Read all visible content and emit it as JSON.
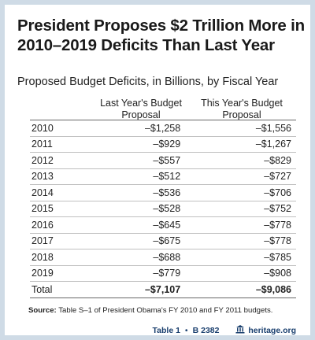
{
  "title": "President Proposes $2 Trillion More in 2010–2019 Deficits Than Last Year",
  "chart_data": {
    "type": "table",
    "title": "President Proposes $2 Trillion More in 2010–2019 Deficits Than Last Year",
    "subtitle": "Proposed Budget Deficits, in Billions, by Fiscal Year",
    "columns": [
      "Last Year's Budget Proposal",
      "This Year's Budget Proposal"
    ],
    "rows": [
      {
        "year": "2010",
        "last": "–$1,258",
        "this": "–$1,556"
      },
      {
        "year": "2011",
        "last": "–$929",
        "this": "–$1,267"
      },
      {
        "year": "2012",
        "last": "–$557",
        "this": "–$829"
      },
      {
        "year": "2013",
        "last": "–$512",
        "this": "–$727"
      },
      {
        "year": "2014",
        "last": "–$536",
        "this": "–$706"
      },
      {
        "year": "2015",
        "last": "–$528",
        "this": "–$752"
      },
      {
        "year": "2016",
        "last": "–$645",
        "this": "–$778"
      },
      {
        "year": "2017",
        "last": "–$675",
        "this": "–$778"
      },
      {
        "year": "2018",
        "last": "–$688",
        "this": "–$785"
      },
      {
        "year": "2019",
        "last": "–$779",
        "this": "–$908"
      }
    ],
    "total": {
      "year": "Total",
      "last": "–$7,107",
      "this": "–$9,086"
    }
  },
  "source": {
    "label": "Source:",
    "text": "Table S–1 of President Obama's FY 2010 and FY 2011 budgets."
  },
  "footer": {
    "table_label": "Table 1",
    "bulletin": "B 2382",
    "site": "heritage.org",
    "logo_icon": "heritage-bell-icon"
  }
}
